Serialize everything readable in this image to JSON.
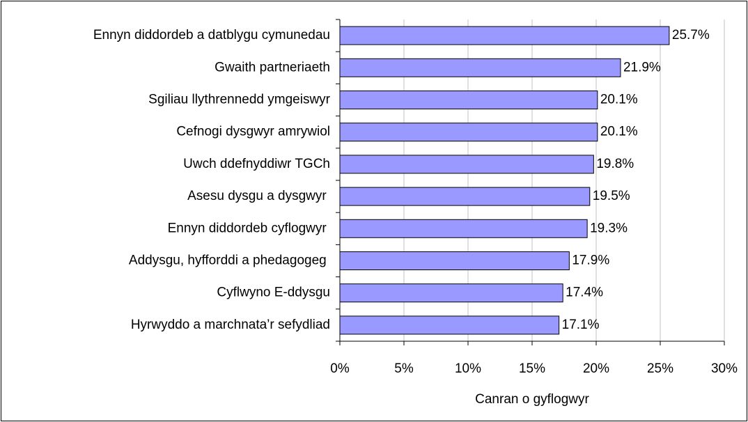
{
  "chart_data": {
    "type": "bar",
    "orientation": "horizontal",
    "categories": [
      "Ennyn diddordeb a datblygu cymunedau",
      "Gwaith partneriaeth",
      "Sgiliau llythrennedd ymgeiswyr",
      "Cefnogi dysgwyr amrywiol",
      "Uwch ddefnyddiwr TGCh",
      "Asesu dysgu a dysgwyr ",
      "Ennyn diddordeb cyflogwyr ",
      "Addysgu, hyfforddi a phedagogeg ",
      "Cyflwyno E-ddysgu",
      "Hyrwyddo a marchnata’r sefydliad"
    ],
    "values": [
      25.7,
      21.9,
      20.1,
      20.1,
      19.8,
      19.5,
      19.3,
      17.9,
      17.4,
      17.1
    ],
    "value_labels": [
      "25.7%",
      "21.9%",
      "20.1%",
      "20.1%",
      "19.8%",
      "19.5%",
      "19.3%",
      "17.9%",
      "17.4%",
      "17.1%"
    ],
    "color": "#9999ff",
    "xlabel": "Canran o gyflogwyr",
    "xlim": [
      0,
      30
    ],
    "xticks": [
      {
        "value": 0,
        "label": "0%"
      },
      {
        "value": 5,
        "label": "5%"
      },
      {
        "value": 10,
        "label": "10%"
      },
      {
        "value": 15,
        "label": "15%"
      },
      {
        "value": 20,
        "label": "20%"
      },
      {
        "value": 25,
        "label": "25%"
      },
      {
        "value": 30,
        "label": "30%"
      }
    ],
    "grid": true
  }
}
